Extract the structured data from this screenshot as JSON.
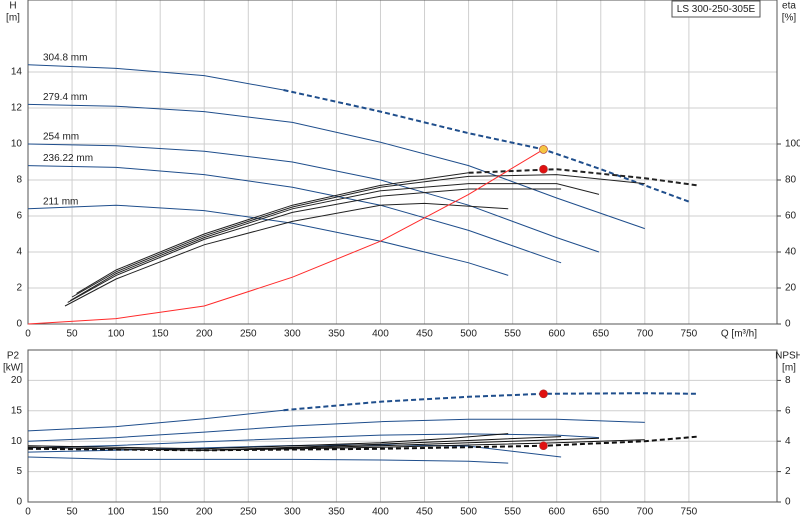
{
  "chart_data": [
    {
      "type": "line",
      "title": "LS 300-250-305E",
      "y_label": "H",
      "y_unit": "[m]",
      "y2_label": "eta",
      "y2_unit": "[%]",
      "x_label": "Q [m³/h]",
      "xlim": [
        0,
        850
      ],
      "xticks": [
        0,
        50,
        100,
        150,
        200,
        250,
        300,
        350,
        400,
        450,
        500,
        550,
        600,
        650,
        700,
        750
      ],
      "ylim": [
        0,
        18
      ],
      "yticks": [
        0,
        2,
        4,
        6,
        8,
        10,
        12,
        14
      ],
      "y2lim": [
        0,
        180
      ],
      "y2ticks": [
        0,
        20,
        40,
        60,
        80,
        100
      ],
      "grid": true,
      "series": [
        {
          "name": "304.8 mm",
          "color": "#1f4e8c",
          "x": [
            0,
            100,
            200,
            290
          ],
          "values": [
            14.4,
            14.2,
            13.8,
            13.0
          ]
        },
        {
          "color": "#1f4e8c",
          "dashed": true,
          "x": [
            290,
            400,
            500,
            585,
            650,
            750
          ],
          "values": [
            13.0,
            11.8,
            10.6,
            9.7,
            8.6,
            6.8
          ]
        },
        {
          "name": "279.4 mm",
          "color": "#1f4e8c",
          "x": [
            0,
            100,
            200,
            300,
            400,
            500,
            600,
            700
          ],
          "values": [
            12.2,
            12.1,
            11.8,
            11.2,
            10.1,
            8.8,
            7.0,
            5.3
          ]
        },
        {
          "name": "254 mm",
          "color": "#1f4e8c",
          "x": [
            0,
            100,
            200,
            300,
            400,
            500,
            600,
            648
          ],
          "values": [
            10.0,
            9.9,
            9.6,
            9.0,
            8.0,
            6.6,
            4.8,
            4.0
          ]
        },
        {
          "name": "236.22 mm",
          "color": "#1f4e8c",
          "x": [
            0,
            100,
            200,
            300,
            400,
            500,
            605
          ],
          "values": [
            8.8,
            8.7,
            8.3,
            7.6,
            6.6,
            5.2,
            3.4
          ]
        },
        {
          "name": "211 mm",
          "color": "#1f4e8c",
          "x": [
            0,
            100,
            200,
            300,
            400,
            500,
            545
          ],
          "values": [
            6.4,
            6.6,
            6.3,
            5.6,
            4.6,
            3.4,
            2.7
          ]
        },
        {
          "color": "#222222",
          "axis": "y2",
          "x": [
            55,
            100,
            200,
            300,
            400,
            500
          ],
          "values": [
            17,
            30,
            50,
            66,
            77,
            84
          ]
        },
        {
          "color": "#222222",
          "axis": "y2",
          "dashed": true,
          "x": [
            500,
            600,
            700,
            760
          ],
          "values": [
            84,
            86,
            81,
            77
          ]
        },
        {
          "color": "#222222",
          "axis": "y2",
          "x": [
            50,
            100,
            200,
            300,
            400,
            500,
            600,
            700
          ],
          "values": [
            15,
            29,
            49,
            65,
            76,
            82,
            83,
            78
          ]
        },
        {
          "color": "#222222",
          "axis": "y2",
          "x": [
            48,
            100,
            200,
            300,
            400,
            500,
            600,
            648
          ],
          "values": [
            13,
            28,
            48,
            64,
            74,
            78,
            78,
            72
          ]
        },
        {
          "color": "#222222",
          "axis": "y2",
          "x": [
            45,
            100,
            200,
            300,
            400,
            500,
            605
          ],
          "values": [
            12,
            27,
            47,
            62,
            71,
            75,
            75
          ]
        },
        {
          "color": "#222222",
          "axis": "y2",
          "x": [
            42,
            100,
            200,
            300,
            400,
            450,
            545
          ],
          "values": [
            10,
            25,
            44,
            57,
            66,
            67,
            64
          ]
        },
        {
          "color": "#ff2a2a",
          "x": [
            0,
            100,
            200,
            300,
            400,
            500,
            585
          ],
          "values": [
            0,
            0.3,
            1.0,
            2.6,
            4.6,
            7.2,
            9.7
          ]
        },
        {
          "color": "#f5c542",
          "marker": true,
          "x": [
            585
          ],
          "values": [
            9.7
          ]
        },
        {
          "color": "#e01010",
          "marker": true,
          "axis": "y2",
          "x": [
            585
          ],
          "values": [
            86
          ]
        }
      ]
    },
    {
      "type": "line",
      "y_label": "P2",
      "y_unit": "[kW]",
      "y2_label": "NPSH",
      "y2_unit": "[m]",
      "xlim": [
        0,
        850
      ],
      "xticks": [
        0,
        50,
        100,
        150,
        200,
        250,
        300,
        350,
        400,
        450,
        500,
        550,
        600,
        650,
        700,
        750
      ],
      "ylim": [
        0,
        25
      ],
      "yticks": [
        0,
        5,
        10,
        15,
        20
      ],
      "y2lim": [
        0,
        10
      ],
      "y2ticks": [
        0,
        2,
        4,
        6,
        8
      ],
      "grid": true,
      "series": [
        {
          "color": "#1f4e8c",
          "x": [
            0,
            100,
            200,
            290
          ],
          "values": [
            11.7,
            12.4,
            13.7,
            15.1
          ]
        },
        {
          "color": "#1f4e8c",
          "dashed": true,
          "x": [
            290,
            400,
            500,
            585,
            700,
            760
          ],
          "values": [
            15.1,
            16.5,
            17.3,
            17.8,
            17.9,
            17.8
          ]
        },
        {
          "color": "#1f4e8c",
          "x": [
            0,
            100,
            200,
            300,
            400,
            500,
            600,
            700
          ],
          "values": [
            10.0,
            10.6,
            11.5,
            12.5,
            13.2,
            13.6,
            13.6,
            13.1
          ]
        },
        {
          "color": "#1f4e8c",
          "x": [
            0,
            100,
            200,
            300,
            400,
            500,
            600,
            648
          ],
          "values": [
            8.9,
            9.3,
            9.9,
            10.5,
            11.0,
            11.2,
            11.0,
            10.6
          ]
        },
        {
          "color": "#1f4e8c",
          "x": [
            0,
            100,
            200,
            300,
            400,
            500,
            605
          ],
          "values": [
            8.2,
            8.5,
            8.9,
            9.3,
            9.4,
            9.2,
            7.4
          ]
        },
        {
          "color": "#1f4e8c",
          "x": [
            0,
            100,
            200,
            300,
            400,
            500,
            545
          ],
          "values": [
            7.4,
            7.0,
            7.0,
            7.0,
            6.9,
            6.7,
            6.4
          ]
        },
        {
          "color": "#111111",
          "axis": "y2",
          "dashed": true,
          "x": [
            0,
            200,
            400,
            585,
            700,
            760
          ],
          "values": [
            3.5,
            3.4,
            3.5,
            3.7,
            4.0,
            4.3
          ]
        },
        {
          "color": "#111111",
          "axis": "y2",
          "x": [
            0,
            200,
            400,
            600,
            700
          ],
          "values": [
            3.6,
            3.4,
            3.6,
            3.9,
            4.1
          ]
        },
        {
          "color": "#111111",
          "axis": "y2",
          "x": [
            0,
            200,
            400,
            550,
            648
          ],
          "values": [
            3.6,
            3.4,
            3.7,
            4.0,
            4.2
          ]
        },
        {
          "color": "#111111",
          "axis": "y2",
          "x": [
            0,
            200,
            400,
            520,
            605
          ],
          "values": [
            3.6,
            3.4,
            3.8,
            4.1,
            4.3
          ]
        },
        {
          "color": "#111111",
          "axis": "y2",
          "x": [
            0,
            200,
            400,
            480,
            545
          ],
          "values": [
            3.7,
            3.5,
            3.9,
            4.2,
            4.5
          ]
        },
        {
          "color": "#e01010",
          "marker": true,
          "x": [
            585
          ],
          "values": [
            17.8
          ]
        },
        {
          "color": "#e01010",
          "marker": true,
          "axis": "y2",
          "x": [
            585
          ],
          "values": [
            3.7
          ]
        }
      ]
    }
  ]
}
